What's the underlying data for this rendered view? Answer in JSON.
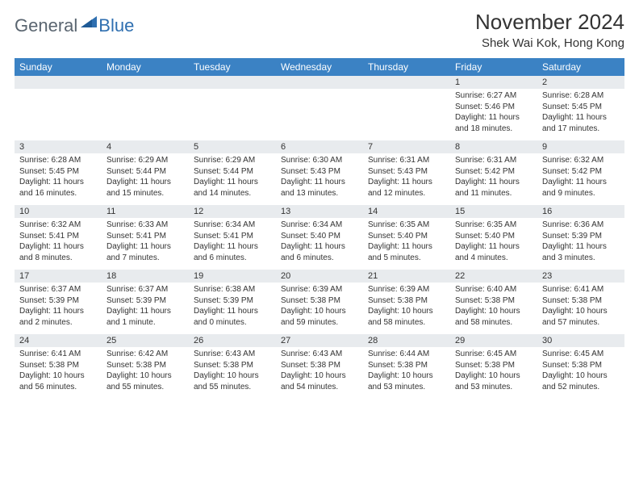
{
  "brand": {
    "part1": "General",
    "part2": "Blue"
  },
  "title": "November 2024",
  "location": "Shek Wai Kok, Hong Kong",
  "colors": {
    "header_bg": "#3b82c4",
    "header_text": "#ffffff",
    "daynum_bg": "#e8ebee",
    "text": "#333333",
    "border": "#3b82c4",
    "logo_gray": "#5a6570",
    "logo_blue": "#2f6fb0"
  },
  "typography": {
    "month_title_size": 26,
    "location_size": 15,
    "weekday_size": 12,
    "daynum_size": 11,
    "body_size": 10
  },
  "weekdays": [
    "Sunday",
    "Monday",
    "Tuesday",
    "Wednesday",
    "Thursday",
    "Friday",
    "Saturday"
  ],
  "weeks": [
    [
      null,
      null,
      null,
      null,
      null,
      {
        "n": "1",
        "sr": "Sunrise: 6:27 AM",
        "ss": "Sunset: 5:46 PM",
        "dl": "Daylight: 11 hours and 18 minutes."
      },
      {
        "n": "2",
        "sr": "Sunrise: 6:28 AM",
        "ss": "Sunset: 5:45 PM",
        "dl": "Daylight: 11 hours and 17 minutes."
      }
    ],
    [
      {
        "n": "3",
        "sr": "Sunrise: 6:28 AM",
        "ss": "Sunset: 5:45 PM",
        "dl": "Daylight: 11 hours and 16 minutes."
      },
      {
        "n": "4",
        "sr": "Sunrise: 6:29 AM",
        "ss": "Sunset: 5:44 PM",
        "dl": "Daylight: 11 hours and 15 minutes."
      },
      {
        "n": "5",
        "sr": "Sunrise: 6:29 AM",
        "ss": "Sunset: 5:44 PM",
        "dl": "Daylight: 11 hours and 14 minutes."
      },
      {
        "n": "6",
        "sr": "Sunrise: 6:30 AM",
        "ss": "Sunset: 5:43 PM",
        "dl": "Daylight: 11 hours and 13 minutes."
      },
      {
        "n": "7",
        "sr": "Sunrise: 6:31 AM",
        "ss": "Sunset: 5:43 PM",
        "dl": "Daylight: 11 hours and 12 minutes."
      },
      {
        "n": "8",
        "sr": "Sunrise: 6:31 AM",
        "ss": "Sunset: 5:42 PM",
        "dl": "Daylight: 11 hours and 11 minutes."
      },
      {
        "n": "9",
        "sr": "Sunrise: 6:32 AM",
        "ss": "Sunset: 5:42 PM",
        "dl": "Daylight: 11 hours and 9 minutes."
      }
    ],
    [
      {
        "n": "10",
        "sr": "Sunrise: 6:32 AM",
        "ss": "Sunset: 5:41 PM",
        "dl": "Daylight: 11 hours and 8 minutes."
      },
      {
        "n": "11",
        "sr": "Sunrise: 6:33 AM",
        "ss": "Sunset: 5:41 PM",
        "dl": "Daylight: 11 hours and 7 minutes."
      },
      {
        "n": "12",
        "sr": "Sunrise: 6:34 AM",
        "ss": "Sunset: 5:41 PM",
        "dl": "Daylight: 11 hours and 6 minutes."
      },
      {
        "n": "13",
        "sr": "Sunrise: 6:34 AM",
        "ss": "Sunset: 5:40 PM",
        "dl": "Daylight: 11 hours and 6 minutes."
      },
      {
        "n": "14",
        "sr": "Sunrise: 6:35 AM",
        "ss": "Sunset: 5:40 PM",
        "dl": "Daylight: 11 hours and 5 minutes."
      },
      {
        "n": "15",
        "sr": "Sunrise: 6:35 AM",
        "ss": "Sunset: 5:40 PM",
        "dl": "Daylight: 11 hours and 4 minutes."
      },
      {
        "n": "16",
        "sr": "Sunrise: 6:36 AM",
        "ss": "Sunset: 5:39 PM",
        "dl": "Daylight: 11 hours and 3 minutes."
      }
    ],
    [
      {
        "n": "17",
        "sr": "Sunrise: 6:37 AM",
        "ss": "Sunset: 5:39 PM",
        "dl": "Daylight: 11 hours and 2 minutes."
      },
      {
        "n": "18",
        "sr": "Sunrise: 6:37 AM",
        "ss": "Sunset: 5:39 PM",
        "dl": "Daylight: 11 hours and 1 minute."
      },
      {
        "n": "19",
        "sr": "Sunrise: 6:38 AM",
        "ss": "Sunset: 5:39 PM",
        "dl": "Daylight: 11 hours and 0 minutes."
      },
      {
        "n": "20",
        "sr": "Sunrise: 6:39 AM",
        "ss": "Sunset: 5:38 PM",
        "dl": "Daylight: 10 hours and 59 minutes."
      },
      {
        "n": "21",
        "sr": "Sunrise: 6:39 AM",
        "ss": "Sunset: 5:38 PM",
        "dl": "Daylight: 10 hours and 58 minutes."
      },
      {
        "n": "22",
        "sr": "Sunrise: 6:40 AM",
        "ss": "Sunset: 5:38 PM",
        "dl": "Daylight: 10 hours and 58 minutes."
      },
      {
        "n": "23",
        "sr": "Sunrise: 6:41 AM",
        "ss": "Sunset: 5:38 PM",
        "dl": "Daylight: 10 hours and 57 minutes."
      }
    ],
    [
      {
        "n": "24",
        "sr": "Sunrise: 6:41 AM",
        "ss": "Sunset: 5:38 PM",
        "dl": "Daylight: 10 hours and 56 minutes."
      },
      {
        "n": "25",
        "sr": "Sunrise: 6:42 AM",
        "ss": "Sunset: 5:38 PM",
        "dl": "Daylight: 10 hours and 55 minutes."
      },
      {
        "n": "26",
        "sr": "Sunrise: 6:43 AM",
        "ss": "Sunset: 5:38 PM",
        "dl": "Daylight: 10 hours and 55 minutes."
      },
      {
        "n": "27",
        "sr": "Sunrise: 6:43 AM",
        "ss": "Sunset: 5:38 PM",
        "dl": "Daylight: 10 hours and 54 minutes."
      },
      {
        "n": "28",
        "sr": "Sunrise: 6:44 AM",
        "ss": "Sunset: 5:38 PM",
        "dl": "Daylight: 10 hours and 53 minutes."
      },
      {
        "n": "29",
        "sr": "Sunrise: 6:45 AM",
        "ss": "Sunset: 5:38 PM",
        "dl": "Daylight: 10 hours and 53 minutes."
      },
      {
        "n": "30",
        "sr": "Sunrise: 6:45 AM",
        "ss": "Sunset: 5:38 PM",
        "dl": "Daylight: 10 hours and 52 minutes."
      }
    ]
  ]
}
